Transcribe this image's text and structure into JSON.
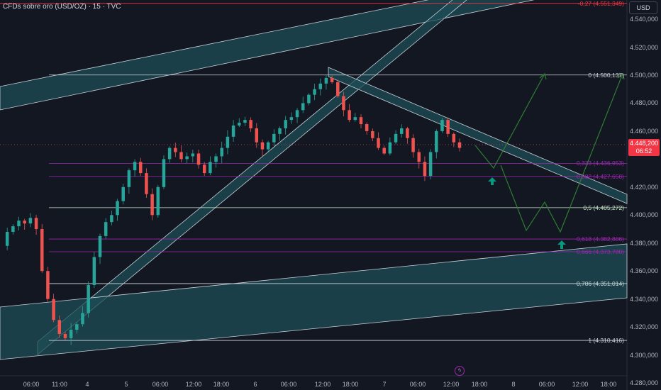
{
  "header": {
    "symbol_title": "CFDs sobre oro (USD/OZ) · 15 · TVC"
  },
  "currency_button": "USD",
  "current_price": {
    "value": "4.448,200",
    "countdown": "06:52"
  },
  "y_axis": {
    "ticks": [
      {
        "value": 4540,
        "label": "4.540,000"
      },
      {
        "value": 4520,
        "label": "4.520,000"
      },
      {
        "value": 4500,
        "label": "4.500,000"
      },
      {
        "value": 4480,
        "label": "4.480,000"
      },
      {
        "value": 4460,
        "label": "4.460,000"
      },
      {
        "value": 4420,
        "label": "4.420,000"
      },
      {
        "value": 4400,
        "label": "4.400,000"
      },
      {
        "value": 4380,
        "label": "4.380,000"
      },
      {
        "value": 4360,
        "label": "4.360,000"
      },
      {
        "value": 4340,
        "label": "4.340,000"
      },
      {
        "value": 4320,
        "label": "4.320,000"
      },
      {
        "value": 4300,
        "label": "4.300,000"
      },
      {
        "value": 4280,
        "label": "4.280,000"
      }
    ]
  },
  "x_axis": {
    "ticks": [
      "06:00",
      "11:00",
      "4",
      "5",
      "06:00",
      "12:00",
      "18:00",
      "6",
      "06:00",
      "12:00",
      "18:00",
      "7",
      "06:00",
      "12:00",
      "18:00",
      "8",
      "06:00",
      "12:00",
      "18:00"
    ]
  },
  "fib_levels": [
    {
      "label": "-0,27 (4.551,349)",
      "price": 4551.349,
      "color": "#f23645"
    },
    {
      "label": "0 (4.500,137)",
      "price": 4500.137,
      "color": "#d1d4dc"
    },
    {
      "label": "0,333 (4.436,953)",
      "price": 4436.953,
      "color": "#9c27b0"
    },
    {
      "label": "0,382 (4.427,658)",
      "price": 4427.658,
      "color": "#9c27b0"
    },
    {
      "label": "0,5 (4.405,272)",
      "price": 4405.272,
      "color": "#c8e6c9"
    },
    {
      "label": "0,618 (4.382,886)",
      "price": 4382.886,
      "color": "#9c27b0"
    },
    {
      "label": "0,666 (4.373,780)",
      "price": 4373.78,
      "color": "#9c27b0"
    },
    {
      "label": "0,786 (4.351,014)",
      "price": 4351.014,
      "color": "#d1d4dc"
    },
    {
      "label": "1 (4.310,416)",
      "price": 4310.416,
      "color": "#d1d4dc"
    }
  ],
  "chart_data": {
    "type": "candlestick",
    "title": "CFDs sobre oro (USD/OZ) · 15 · TVC",
    "price_series": [
      4378,
      4388,
      4392,
      4396,
      4394,
      4398,
      4390,
      4360,
      4340,
      4325,
      4315,
      4312,
      4318,
      4322,
      4330,
      4350,
      4370,
      4385,
      4395,
      4400,
      4410,
      4420,
      4432,
      4438,
      4430,
      4415,
      4400,
      4420,
      4440,
      4448,
      4445,
      4440,
      4442,
      4444,
      4436,
      4430,
      4438,
      4442,
      4448,
      4456,
      4464,
      4466,
      4468,
      4462,
      4452,
      4447,
      4452,
      4458,
      4462,
      4468,
      4470,
      4475,
      4480,
      4486,
      4490,
      4494,
      4498,
      4495,
      4485,
      4475,
      4468,
      4470,
      4465,
      4460,
      4455,
      4448,
      4444,
      4452,
      4458,
      4462,
      4455,
      4445,
      4438,
      4428,
      4445,
      4460,
      4468,
      4458,
      4452,
      4448
    ],
    "last_price": 4448.2,
    "ylim": [
      4275,
      4557
    ]
  },
  "drawing_colors": {
    "channel_fill": "#1e4d55",
    "channel_edge": "#c9d1d9",
    "projection": "#2e7d32",
    "buy_arrow": "#089981",
    "bull": "#26a69a",
    "bear": "#ef5350"
  },
  "event_marker": "ϟ"
}
